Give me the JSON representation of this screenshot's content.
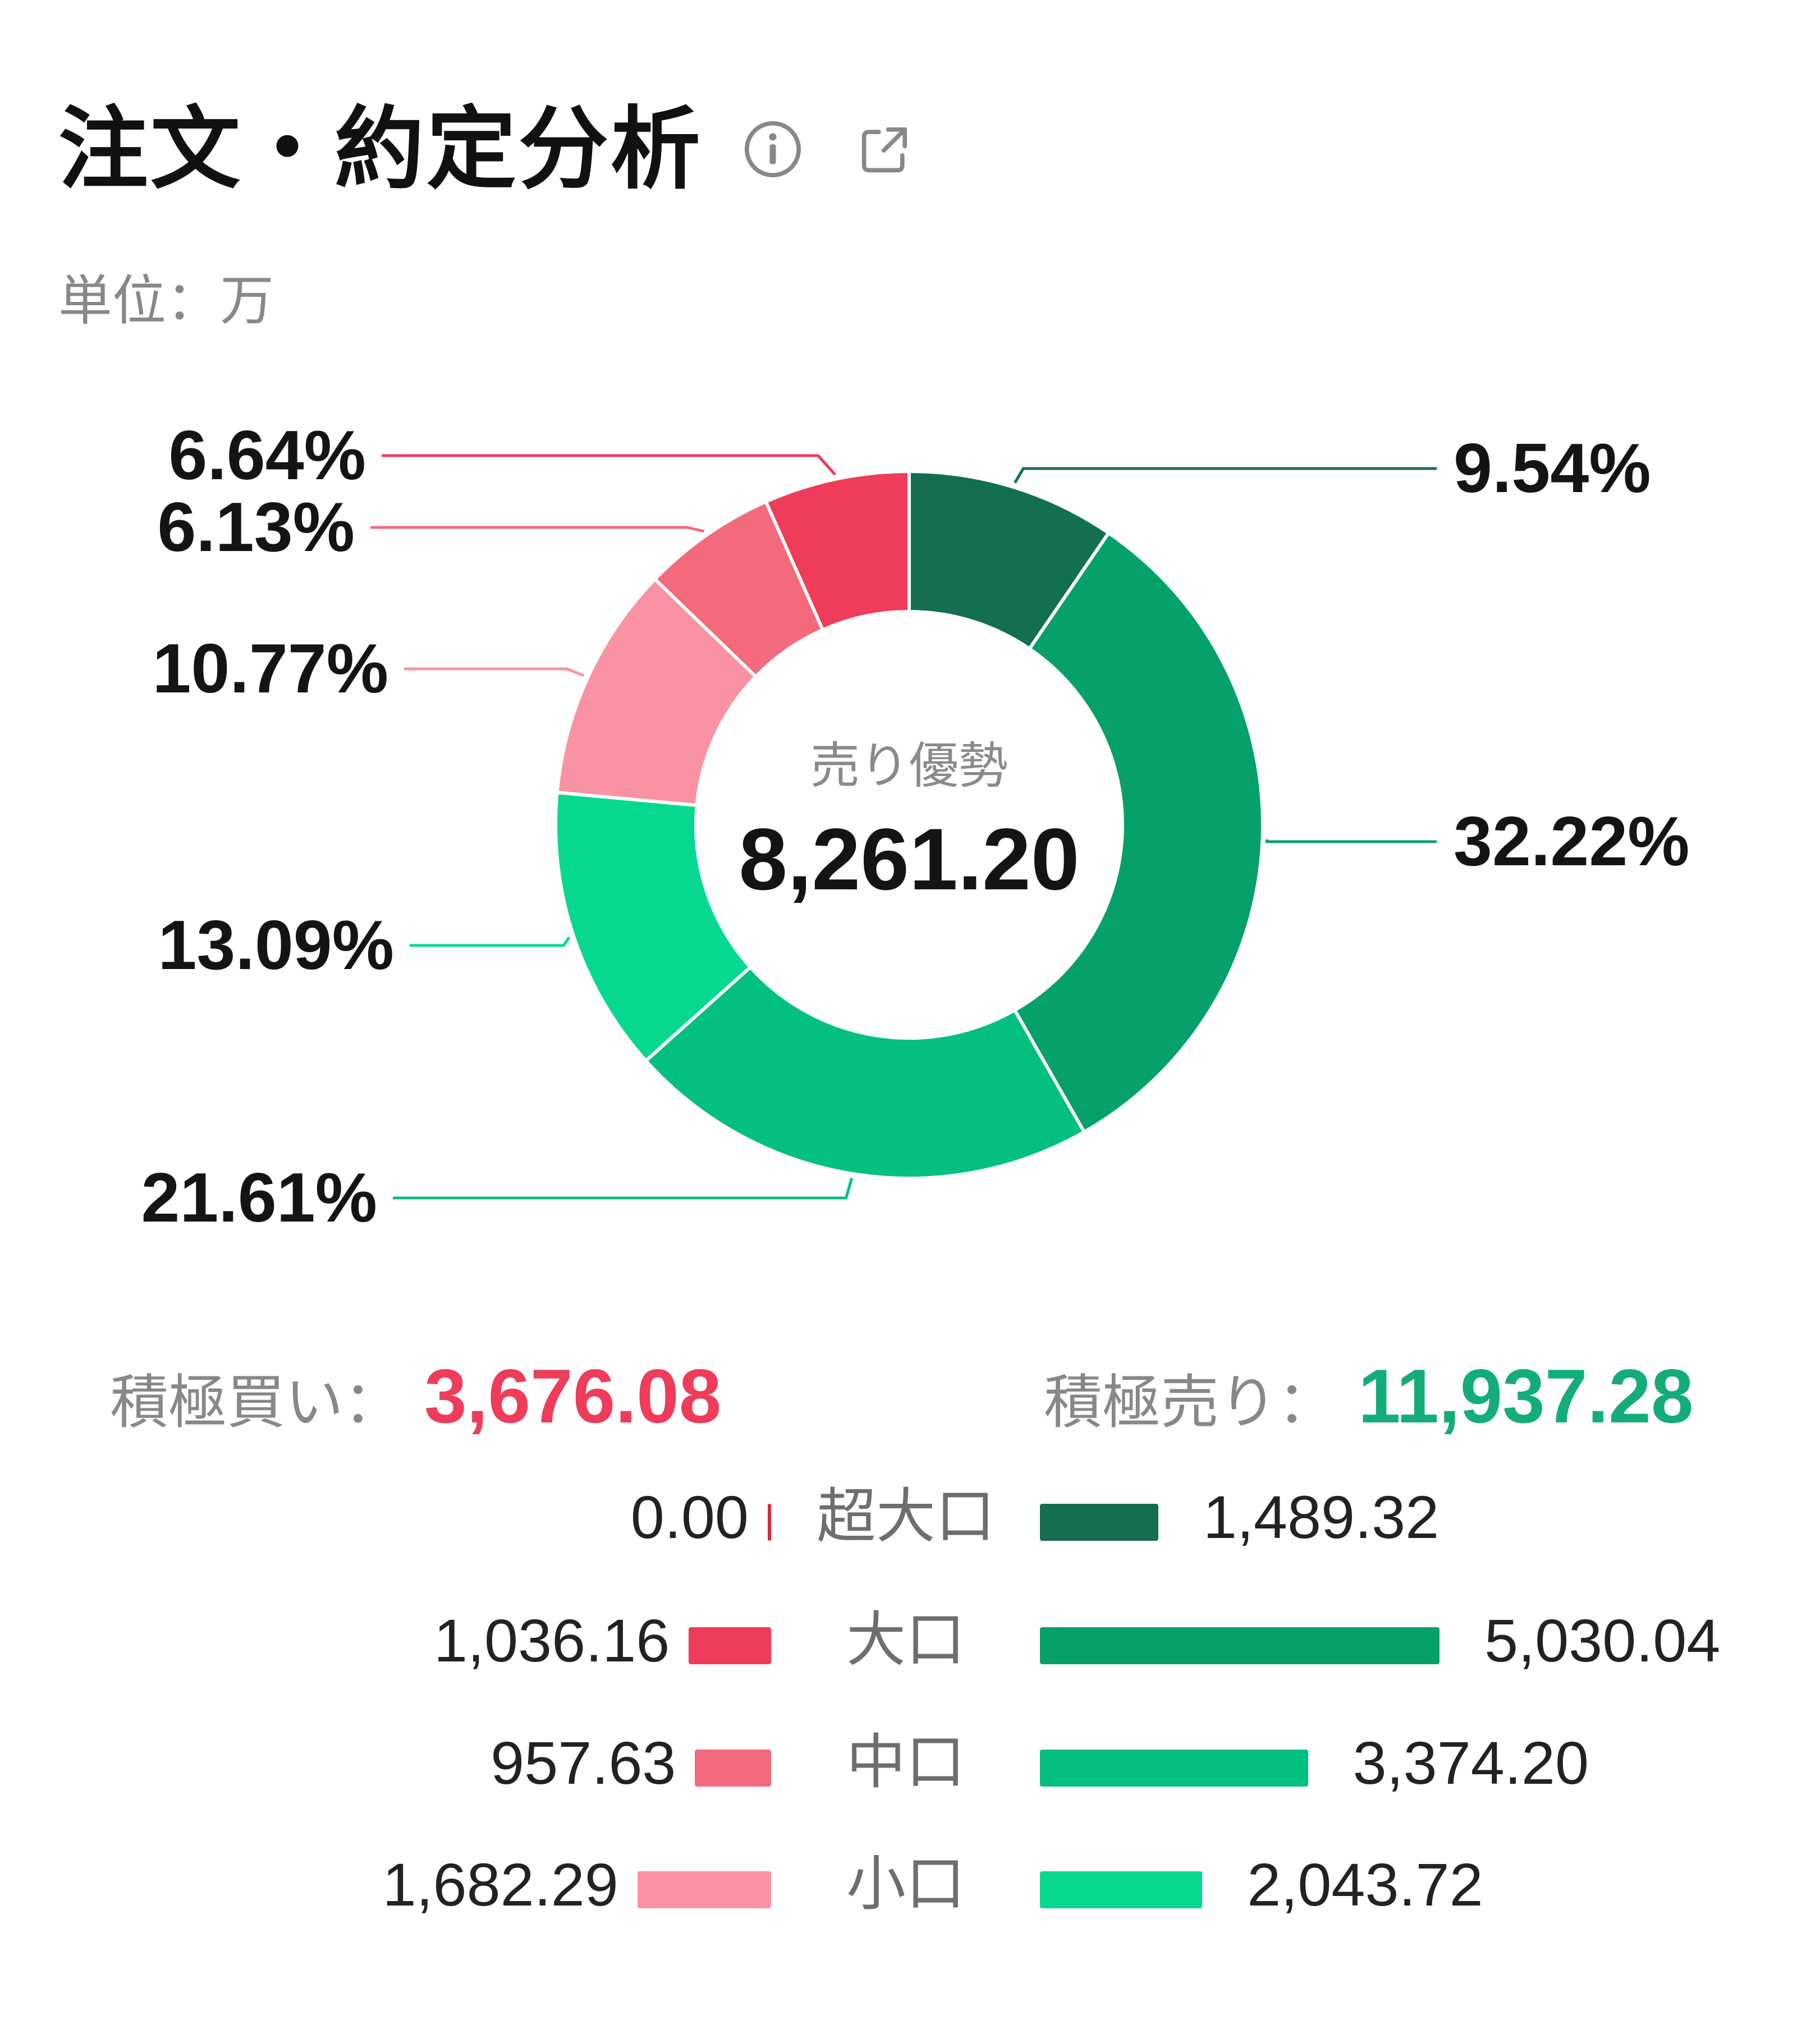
{
  "header": {
    "title": "注文・約定分析",
    "info_icon": "info-icon",
    "share_icon": "share-icon"
  },
  "unit_label": "単位：万",
  "colors": {
    "super_large_sell": "#136f50",
    "large_sell": "#06a06a",
    "medium_sell": "#03bf80",
    "small_sell": "#06d98f",
    "large_buy": "#ee3c5a",
    "medium_buy": "#f36a7d",
    "small_buy": "#f992a2",
    "super_large_buy": "#d9283f",
    "buy_total": "#ee3c5a",
    "sell_total": "#14ad78"
  },
  "chart_data": {
    "type": "pie",
    "style": "donut",
    "center_label": "売り優勢",
    "center_value": "8,261.20",
    "slices": [
      {
        "label": "9.54%",
        "value": 9.54,
        "color": "#136f50"
      },
      {
        "label": "32.22%",
        "value": 32.22,
        "color": "#06a06a"
      },
      {
        "label": "21.61%",
        "value": 21.61,
        "color": "#03bf80"
      },
      {
        "label": "13.09%",
        "value": 13.09,
        "color": "#06d98f"
      },
      {
        "label": "10.77%",
        "value": 10.77,
        "color": "#f992a2"
      },
      {
        "label": "6.13%",
        "value": 6.13,
        "color": "#f36a7d"
      },
      {
        "label": "6.64%",
        "value": 6.64,
        "color": "#ee3c5a"
      }
    ]
  },
  "totals": {
    "buy_label": "積極買い：",
    "buy_value": "3,676.08",
    "sell_label": "積極売り：",
    "sell_value": "11,937.28"
  },
  "breakdown": [
    {
      "category": "超大口",
      "buy_text": "0.00",
      "buy": 0.0,
      "sell_text": "1,489.32",
      "sell": 1489.32,
      "buy_color": "#d9283f",
      "sell_color": "#136f50"
    },
    {
      "category": "大口",
      "buy_text": "1,036.16",
      "buy": 1036.16,
      "sell_text": "5,030.04",
      "sell": 5030.04,
      "buy_color": "#ee3c5a",
      "sell_color": "#06a06a"
    },
    {
      "category": "中口",
      "buy_text": "957.63",
      "buy": 957.63,
      "sell_text": "3,374.20",
      "sell": 3374.2,
      "buy_color": "#f36a7d",
      "sell_color": "#03bf80"
    },
    {
      "category": "小口",
      "buy_text": "1,682.29",
      "buy": 1682.29,
      "sell_text": "2,043.72",
      "sell": 2043.72,
      "buy_color": "#f992a2",
      "sell_color": "#06d98f"
    }
  ]
}
